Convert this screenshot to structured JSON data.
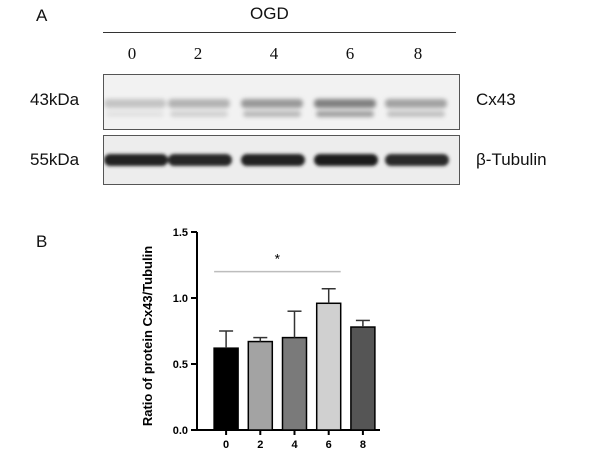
{
  "panel_a": {
    "letter": "A",
    "group_label": "OGD",
    "lanes": [
      "0",
      "2",
      "4",
      "6",
      "8"
    ],
    "blots": [
      {
        "mw": "43kDa",
        "protein": "Cx43",
        "intensities": [
          0.35,
          0.45,
          0.6,
          0.75,
          0.55
        ]
      },
      {
        "mw": "55kDa",
        "protein": "β-Tubulin",
        "intensities": [
          0.95,
          0.92,
          0.95,
          0.97,
          0.9
        ]
      }
    ]
  },
  "panel_b": {
    "letter": "B"
  },
  "chart_data": {
    "type": "bar",
    "categories": [
      "0",
      "2",
      "4",
      "6",
      "8"
    ],
    "values": [
      0.62,
      0.67,
      0.7,
      0.96,
      0.78
    ],
    "errors": [
      0.13,
      0.03,
      0.2,
      0.11,
      0.05
    ],
    "bar_colors": [
      "#000000",
      "#a3a3a3",
      "#7a7a7a",
      "#d0d0d0",
      "#555555"
    ],
    "ylabel": "Ratio of protein Cx43/Tubulin",
    "xlabel": "",
    "ylim": [
      0,
      1.5
    ],
    "yticks": [
      0.0,
      0.5,
      1.0,
      1.5
    ],
    "ytick_labels": [
      "0.0",
      "0.5",
      "1.0",
      "1.5"
    ],
    "significance": {
      "from": "0",
      "to": "6",
      "label": "*"
    },
    "grid": false
  }
}
